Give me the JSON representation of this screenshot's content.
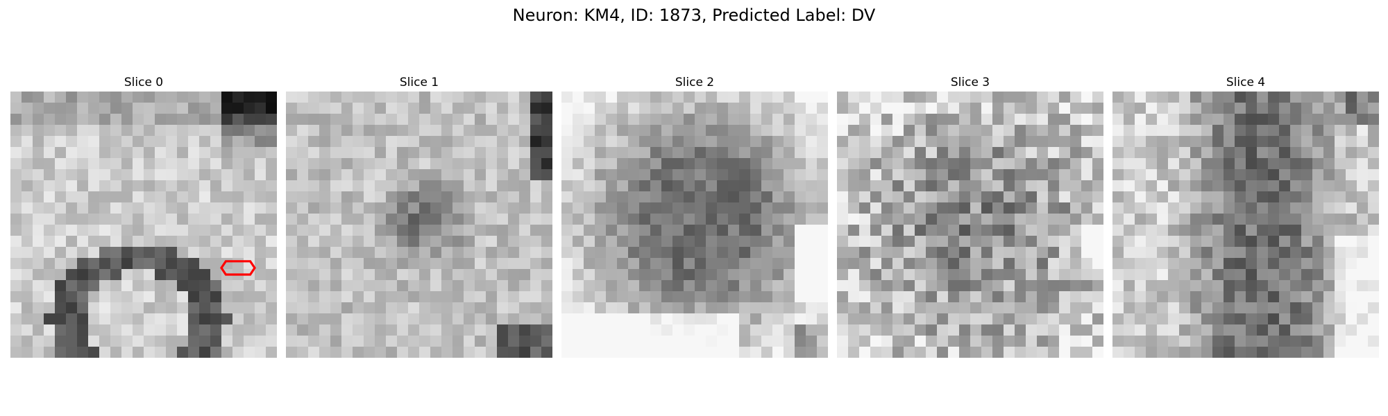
{
  "figure": {
    "title": "Neuron: KM4, ID: 1873, Predicted Label: DV"
  },
  "slices": [
    {
      "title": "Slice 0"
    },
    {
      "title": "Slice 1"
    },
    {
      "title": "Slice 2"
    },
    {
      "title": "Slice 3"
    },
    {
      "title": "Slice 4"
    }
  ],
  "colors": {
    "background": "#ffffff",
    "marker": "#ff0000"
  }
}
